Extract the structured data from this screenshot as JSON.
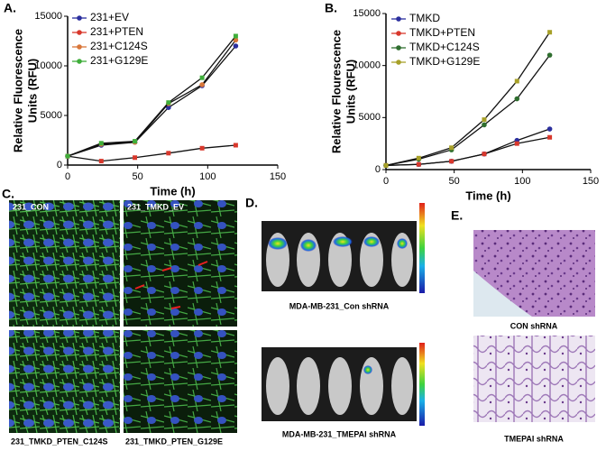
{
  "chart_data": [
    {
      "type": "line",
      "panel_label": "A.",
      "xlabel": "Time (h)",
      "ylabel": [
        "Relative Fluorescence",
        "Units (RFU)"
      ],
      "x": [
        0,
        24,
        48,
        72,
        96,
        120
      ],
      "xlim": [
        0,
        150
      ],
      "xticks": [
        0,
        50,
        100,
        150
      ],
      "ylim": [
        0,
        15000
      ],
      "yticks": [
        0,
        5000,
        10000,
        15000
      ],
      "line_color": "#111111",
      "legend": "upper left",
      "series": [
        {
          "name": "231+EV",
          "color": "#2b2f9e",
          "values": [
            900,
            2000,
            2300,
            5800,
            8000,
            12000
          ]
        },
        {
          "name": "231+PTEN",
          "color": "#d8382c",
          "values": [
            900,
            400,
            750,
            1200,
            1700,
            2000
          ]
        },
        {
          "name": "231+C124S",
          "color": "#d9773a",
          "values": [
            900,
            2100,
            2300,
            6200,
            8100,
            12600
          ]
        },
        {
          "name": "231+G129E",
          "color": "#3fae3a",
          "values": [
            900,
            2200,
            2400,
            6300,
            8800,
            13000
          ]
        }
      ]
    },
    {
      "type": "line",
      "panel_label": "B.",
      "xlabel": "Time (h)",
      "ylabel": [
        "Relative Flourescence",
        "Units (RFU)"
      ],
      "x": [
        0,
        24,
        48,
        72,
        96,
        120
      ],
      "xlim": [
        0,
        150
      ],
      "xticks": [
        0,
        50,
        100,
        150
      ],
      "ylim": [
        0,
        15000
      ],
      "yticks": [
        0,
        5000,
        10000,
        15000
      ],
      "line_color": "#111111",
      "legend": "upper left",
      "series": [
        {
          "name": "TMKD",
          "color": "#2b2f9e",
          "values": [
            400,
            500,
            800,
            1500,
            2800,
            3900
          ]
        },
        {
          "name": "TMKD+PTEN",
          "color": "#d8382c",
          "values": [
            400,
            500,
            800,
            1500,
            2500,
            3100
          ]
        },
        {
          "name": "TMKD+C124S",
          "color": "#2f6e2f",
          "values": [
            400,
            1000,
            1900,
            4300,
            6800,
            11000
          ]
        },
        {
          "name": "TMKD+G129E",
          "color": "#a7a028",
          "values": [
            400,
            1100,
            2100,
            4800,
            8500,
            13200
          ]
        }
      ]
    }
  ],
  "panels": {
    "c": {
      "label": "C.",
      "images": [
        "231_CON",
        "231_TMKD_EV",
        "231_TMKD_PTEN_C124S",
        "231_TMKD_PTEN_G129E"
      ]
    },
    "d": {
      "label": "D.",
      "captions": [
        "MDA-MB-231_Con shRNA",
        "MDA-MB-231_TMEPAI shRNA"
      ]
    },
    "e": {
      "label": "E.",
      "captions": [
        "CON shRNA",
        "TMEPAI shRNA"
      ]
    }
  }
}
